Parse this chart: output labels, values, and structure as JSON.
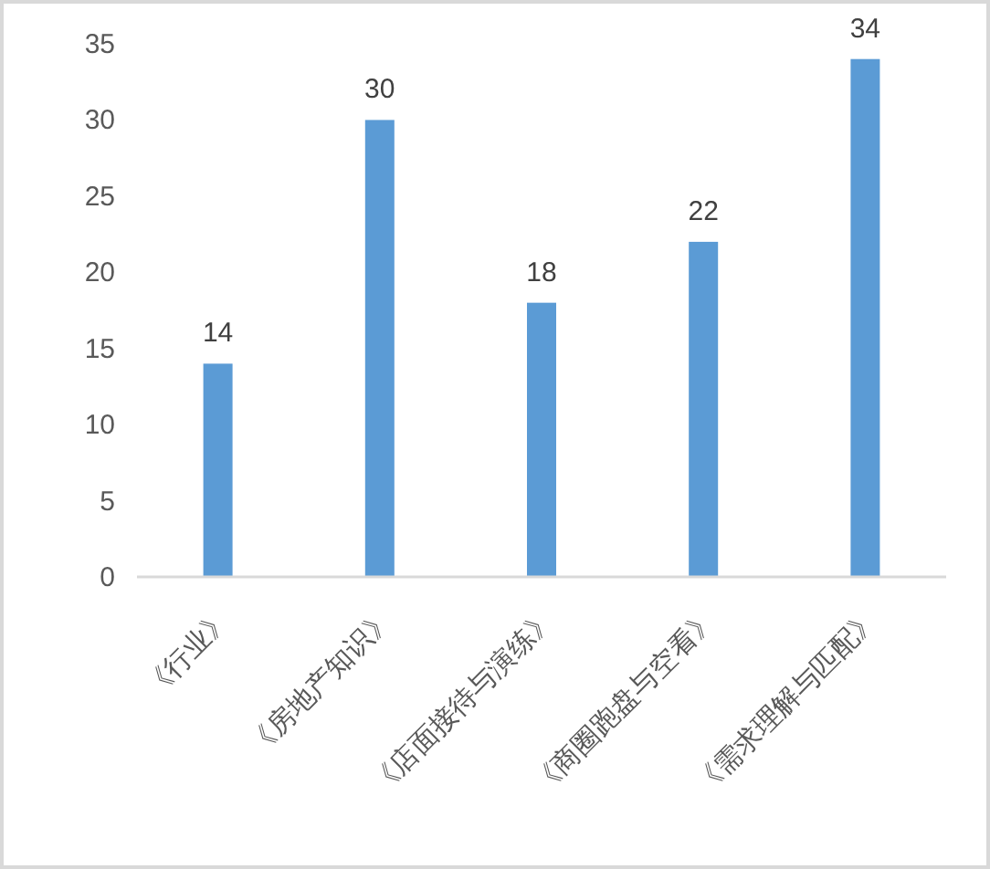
{
  "chart_data": {
    "type": "bar",
    "categories": [
      "《行业》",
      "《房地产知识》",
      "《店面接待与演练》",
      "《商圈跑盘与空看》",
      "《需求理解与匹配》"
    ],
    "values": [
      14,
      30,
      18,
      22,
      34
    ],
    "color": "#5b9bd5",
    "ylim": [
      0,
      35
    ],
    "yticks": [
      0,
      5,
      10,
      15,
      20,
      25,
      30,
      35
    ],
    "data_labels": true
  }
}
